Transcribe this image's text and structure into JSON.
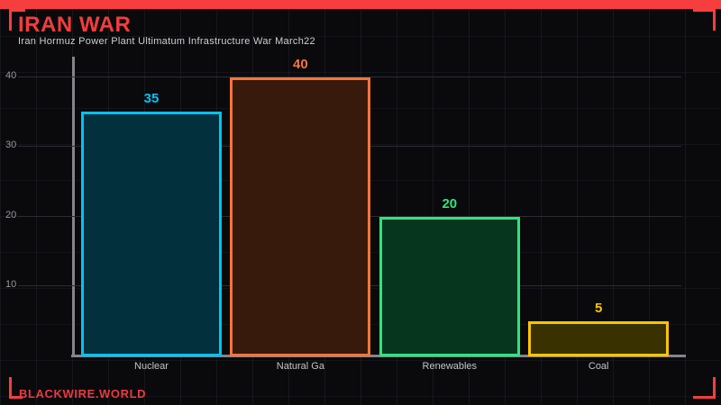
{
  "header": {
    "title": "IRAN WAR",
    "subtitle": "Iran Hormuz Power Plant Ultimatum Infrastructure War March22"
  },
  "footer": {
    "brand": "BLACKWIRE.WORLD"
  },
  "colors": {
    "accent_red": "#f53c3c",
    "background": "#0a0a0d",
    "axis_gray": "#84848a",
    "subtitle_gray": "#cfcfcf",
    "tick_gray": "#98989c"
  },
  "chart_data": {
    "type": "bar",
    "title": "IRAN WAR",
    "subtitle": "Iran Hormuz Power Plant Ultimatum Infrastructure War March22",
    "categories": [
      "Nuclear",
      "Natural Ga",
      "Renewables",
      "Coal"
    ],
    "values": [
      35,
      40,
      20,
      5
    ],
    "bar_border_colors": [
      "#00c4f2",
      "#f5743c",
      "#2de57c",
      "#fdc401"
    ],
    "bar_fill_colors": [
      "#03303d",
      "#381a0d",
      "#07361e",
      "#3a3100"
    ],
    "value_label_colors": [
      "#00c4f2",
      "#f5743c",
      "#2de57c",
      "#fdc401"
    ],
    "xlabel": "",
    "ylabel": "",
    "yticks": [
      10,
      20,
      30,
      40
    ],
    "ylim": [
      0,
      43
    ],
    "grid": true,
    "legend": false
  }
}
